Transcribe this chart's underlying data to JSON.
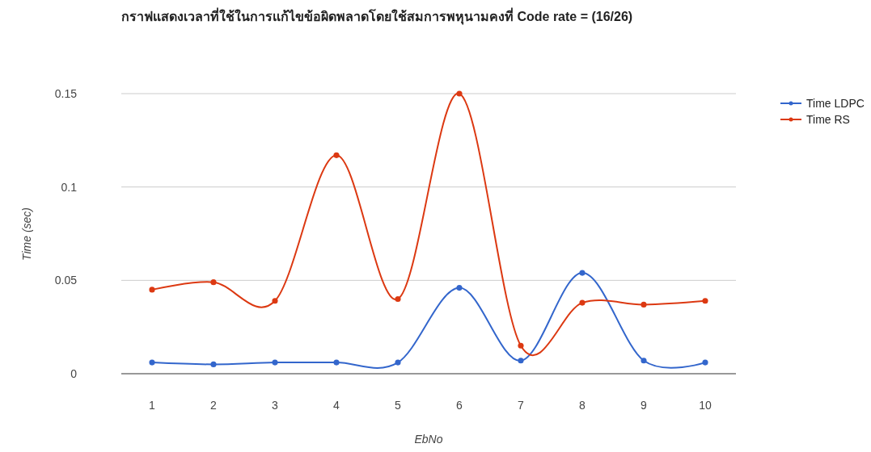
{
  "chart_data": {
    "type": "line",
    "title": "กราฟแสดงเวลาที่ใช้ในการแก้ไขข้อผิดพลาดโดยใช้สมการพหุนามคงที่ Code rate = (16/26)",
    "xlabel": "EbNo",
    "ylabel": "Time (sec)",
    "categories": [
      "1",
      "2",
      "3",
      "4",
      "5",
      "6",
      "7",
      "8",
      "9",
      "10"
    ],
    "series": [
      {
        "name": "Time LDPC",
        "color": "#3366cc",
        "values": [
          0.006,
          0.005,
          0.006,
          0.006,
          0.006,
          0.046,
          0.007,
          0.054,
          0.007,
          0.006
        ]
      },
      {
        "name": "Time RS",
        "color": "#dc3912",
        "values": [
          0.045,
          0.049,
          0.039,
          0.117,
          0.04,
          0.15,
          0.015,
          0.038,
          0.037,
          0.039
        ]
      }
    ],
    "ylim": [
      0,
      0.15
    ],
    "yticks": [
      0,
      0.05,
      0.1,
      0.15
    ],
    "grid": "y",
    "legend": "right",
    "marker": "circle",
    "line_style": "solid"
  }
}
